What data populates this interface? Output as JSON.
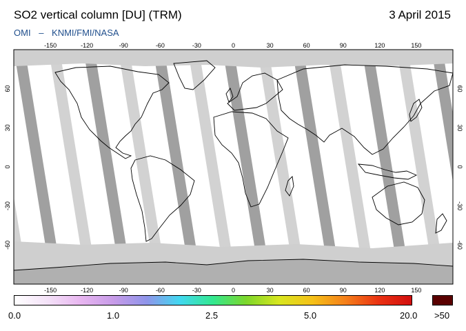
{
  "header": {
    "title": "SO2 vertical column [DU] (TRM)",
    "date": "3 April 2015",
    "credit_left": "OMI",
    "credit_sep": "–",
    "credit_right": "KNMI/FMI/NASA"
  },
  "map": {
    "lon_ticks": [
      "-150",
      "-120",
      "-90",
      "-60",
      "-30",
      "0",
      "30",
      "60",
      "90",
      "120",
      "150"
    ],
    "lat_ticks": [
      "60",
      "30",
      "0",
      "-30",
      "-60"
    ],
    "colors": {
      "ocean": "#ffffff",
      "coast": "#000000",
      "gap_dark": "#a0a0a0",
      "gap_light": "#d2d2d2",
      "polar_fill": "#cfcfcf",
      "antarctica": "#b0b0b0"
    }
  },
  "colorbar": {
    "labels": [
      "0.0",
      "1.0",
      "2.5",
      "5.0",
      "20.0",
      ">50"
    ],
    "gradient_colors": [
      "#ffffff",
      "#f4e2f8",
      "#e8b6f0",
      "#c79be8",
      "#8f95ea",
      "#41d8f0",
      "#33e88f",
      "#7cd72b",
      "#d8e61f",
      "#f5c118",
      "#f5801a",
      "#ea3212",
      "#d20f0f"
    ],
    "max_color": "#5a0000"
  }
}
